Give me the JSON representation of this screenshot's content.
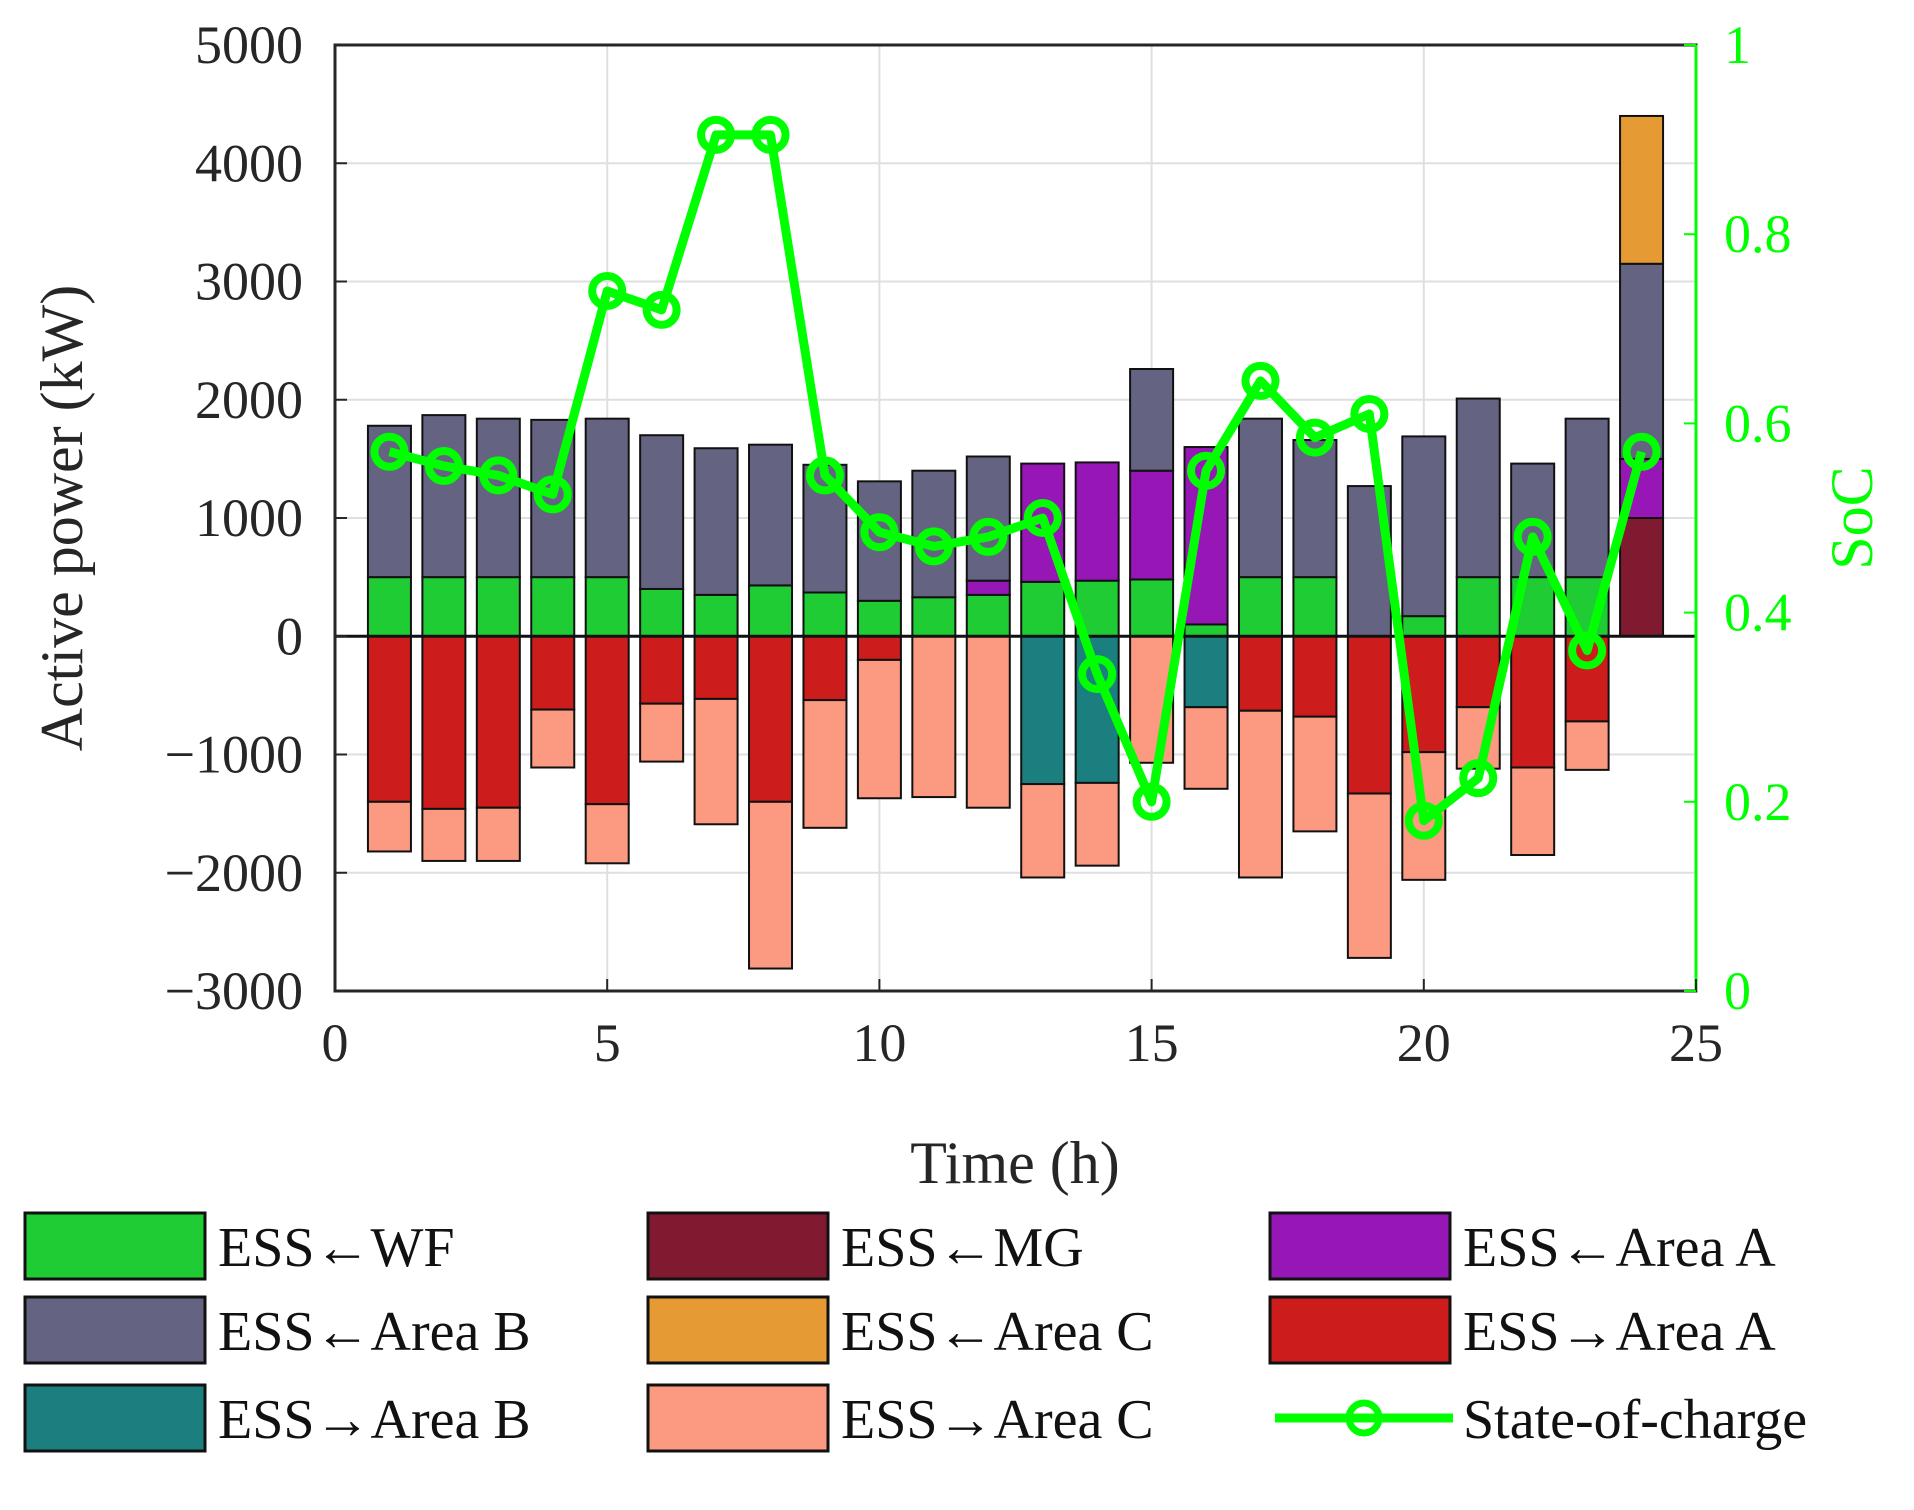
{
  "chart_data": {
    "type": "bar",
    "stacked": true,
    "x": [
      1,
      2,
      3,
      4,
      5,
      6,
      7,
      8,
      9,
      10,
      11,
      12,
      13,
      14,
      15,
      16,
      17,
      18,
      19,
      20,
      21,
      22,
      23,
      24
    ],
    "xlabel": "Time (h)",
    "ylabel": "Active power (kW)",
    "y2label": "SoC",
    "xlim": [
      0,
      25
    ],
    "ylim": [
      -3000,
      5000
    ],
    "y2lim": [
      0,
      1
    ],
    "xticks": [
      "0",
      "5",
      "10",
      "15",
      "20",
      "25"
    ],
    "yticks": [
      "5000",
      "4000",
      "3000",
      "2000",
      "1000",
      "0",
      "−1000",
      "−2000",
      "−3000"
    ],
    "y2ticks": [
      "1",
      "0.8",
      "0.6",
      "0.4",
      "0.2",
      "0"
    ],
    "grid": true,
    "legend_position": "bottom",
    "series": [
      {
        "name": "ESS←WF",
        "color": "#1fcc33",
        "sign": "positive",
        "values": [
          500,
          500,
          500,
          500,
          500,
          400,
          350,
          430,
          370,
          300,
          330,
          350,
          460,
          470,
          480,
          100,
          500,
          500,
          0,
          170,
          500,
          500,
          500,
          0
        ]
      },
      {
        "name": "ESS←MG",
        "color": "#7f1a30",
        "sign": "positive",
        "values": [
          0,
          0,
          0,
          0,
          0,
          0,
          0,
          0,
          0,
          0,
          0,
          0,
          0,
          0,
          0,
          0,
          0,
          0,
          0,
          0,
          0,
          0,
          0,
          1000
        ]
      },
      {
        "name": "ESS←Area A",
        "color": "#9617b5",
        "sign": "positive",
        "values": [
          0,
          0,
          0,
          0,
          0,
          0,
          0,
          0,
          0,
          0,
          0,
          120,
          1000,
          1000,
          920,
          1500,
          0,
          0,
          0,
          0,
          0,
          0,
          0,
          500
        ]
      },
      {
        "name": "ESS←Area B",
        "color": "#646482",
        "sign": "positive",
        "values": [
          1280,
          1370,
          1340,
          1330,
          1340,
          1300,
          1240,
          1190,
          1080,
          1010,
          1070,
          1050,
          0,
          0,
          860,
          0,
          1340,
          1160,
          1270,
          1520,
          1510,
          960,
          1340,
          1650
        ]
      },
      {
        "name": "ESS←Area C",
        "color": "#e69a33",
        "sign": "positive",
        "values": [
          0,
          0,
          0,
          0,
          0,
          0,
          0,
          0,
          0,
          0,
          0,
          0,
          0,
          0,
          0,
          0,
          0,
          0,
          0,
          0,
          0,
          0,
          0,
          1250
        ]
      },
      {
        "name": "ESS→Area A",
        "color": "#cc1c1c",
        "sign": "negative",
        "values": [
          -1400,
          -1460,
          -1450,
          -620,
          -1420,
          -570,
          -530,
          -1400,
          -540,
          -200,
          0,
          0,
          0,
          0,
          0,
          0,
          -630,
          -680,
          -1330,
          -980,
          -600,
          -1110,
          -720,
          0
        ]
      },
      {
        "name": "ESS→Area B",
        "color": "#1b7f7f",
        "sign": "negative",
        "values": [
          0,
          0,
          0,
          0,
          0,
          0,
          0,
          0,
          0,
          0,
          0,
          0,
          -1250,
          -1240,
          0,
          -600,
          0,
          0,
          0,
          0,
          0,
          0,
          0,
          0
        ]
      },
      {
        "name": "ESS→Area C",
        "color": "#fb9a80",
        "sign": "negative",
        "values": [
          -420,
          -440,
          -450,
          -490,
          -500,
          -490,
          -1060,
          -1410,
          -1080,
          -1170,
          -1360,
          -1450,
          -790,
          -700,
          -1070,
          -690,
          -1410,
          -970,
          -1390,
          -1080,
          -520,
          -740,
          -410,
          0
        ]
      },
      {
        "name": "State-of-charge",
        "color": "#00ff00",
        "type": "line",
        "axis": "right",
        "values": [
          0.57,
          0.555,
          0.545,
          0.525,
          0.74,
          0.72,
          0.905,
          0.905,
          0.545,
          0.485,
          0.47,
          0.48,
          0.5,
          0.335,
          0.2,
          0.55,
          0.645,
          0.585,
          0.61,
          0.18,
          0.225,
          0.48,
          0.36,
          0.57
        ]
      }
    ],
    "legend": [
      "ESS←WF",
      "ESS←MG",
      "ESS←Area A",
      "ESS←Area B",
      "ESS←Area C",
      "ESS→Area A",
      "ESS→Area B",
      "ESS→Area C",
      "State-of-charge"
    ]
  }
}
